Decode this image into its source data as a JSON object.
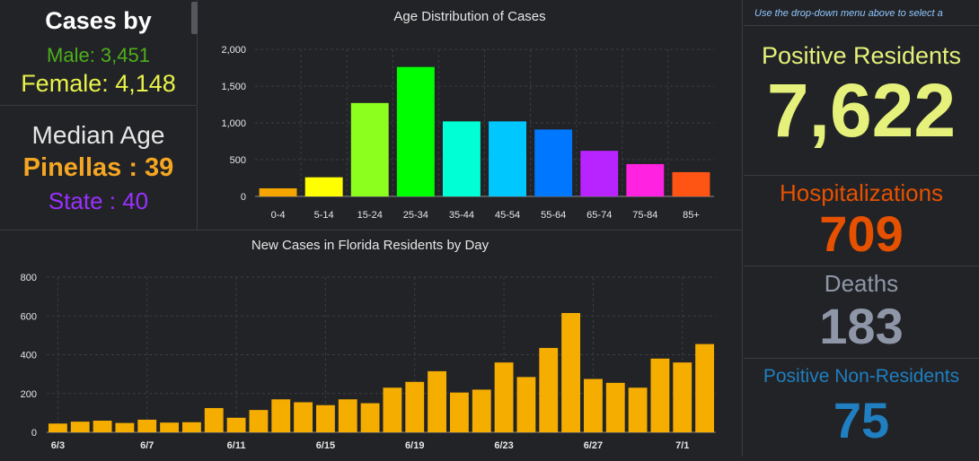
{
  "cases_by": {
    "title": "Cases by",
    "male": "Male: 3,451",
    "female": "Female: 4,148"
  },
  "median_age": {
    "title": "Median Age",
    "county": "Pinellas : 39",
    "state": "State : 40"
  },
  "instruction": "Use the drop-down menu above to select a",
  "stats": {
    "positive_residents_label": "Positive Residents",
    "positive_residents_value": "7,622",
    "hospitalizations_label": "Hospitalizations",
    "hospitalizations_value": "709",
    "deaths_label": "Deaths",
    "deaths_value": "183",
    "non_residents_label": "Positive Non-Residents",
    "non_residents_value": "75"
  },
  "colors": {
    "male": "#4caf1c",
    "female": "#e8f24a",
    "county": "#f5a623",
    "state": "#9b30ff",
    "positive": "#e5f17a",
    "hosp": "#e65100",
    "deaths": "#8e96a8",
    "nonres": "#1f7fc1",
    "daily_bar": "#f5ad00"
  },
  "chart_data": [
    {
      "type": "bar",
      "title": "Age Distribution of Cases",
      "categories": [
        "0-4",
        "5-14",
        "15-24",
        "25-34",
        "35-44",
        "45-54",
        "55-64",
        "65-74",
        "75-84",
        "85+"
      ],
      "values": [
        110,
        260,
        1270,
        1760,
        1020,
        1020,
        910,
        620,
        440,
        330
      ],
      "bar_colors": [
        "#f5a500",
        "#ffff00",
        "#8dff1e",
        "#00ff00",
        "#00ffd5",
        "#00c8ff",
        "#0077ff",
        "#b824ff",
        "#ff22e0",
        "#ff5514"
      ],
      "yticks": [
        "0",
        "500",
        "1,000",
        "1,500",
        "2,000"
      ],
      "ylim": [
        0,
        2000
      ],
      "grid": true
    },
    {
      "type": "bar",
      "title": "New Cases in Florida Residents by Day",
      "categories": [
        "6/3",
        "6/4",
        "6/5",
        "6/6",
        "6/7",
        "6/8",
        "6/9",
        "6/10",
        "6/11",
        "6/12",
        "6/13",
        "6/14",
        "6/15",
        "6/16",
        "6/17",
        "6/18",
        "6/19",
        "6/20",
        "6/21",
        "6/22",
        "6/23",
        "6/24",
        "6/25",
        "6/26",
        "6/27",
        "6/28",
        "6/29",
        "6/30",
        "7/1",
        "7/2"
      ],
      "values": [
        45,
        55,
        60,
        48,
        65,
        50,
        52,
        125,
        75,
        115,
        170,
        155,
        140,
        170,
        150,
        230,
        260,
        315,
        205,
        220,
        360,
        285,
        435,
        615,
        275,
        255,
        230,
        380,
        360,
        455
      ],
      "tick_labels": [
        "6/3",
        "6/7",
        "6/11",
        "6/15",
        "6/19",
        "6/23",
        "6/27",
        "7/1"
      ],
      "yticks": [
        "0",
        "200",
        "400",
        "600",
        "800"
      ],
      "ylim": [
        0,
        800
      ],
      "grid": true
    }
  ]
}
